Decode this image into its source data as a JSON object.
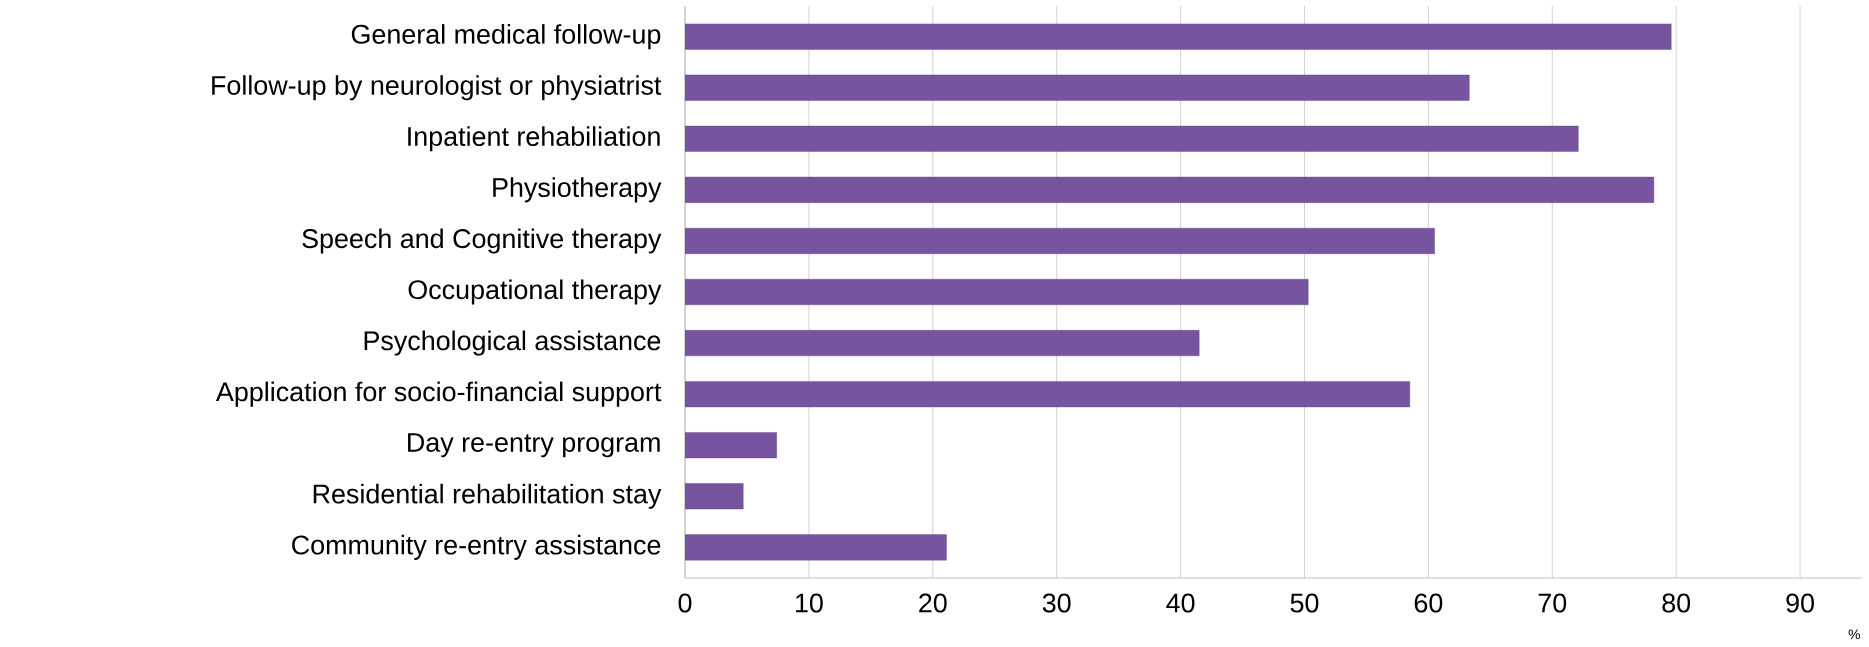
{
  "chart_data": {
    "type": "bar",
    "orientation": "horizontal",
    "xlabel": "%",
    "categories": [
      "General medical follow-up",
      "Follow-up by neurologist or physiatrist",
      "Inpatient rehabiliation",
      "Physiotherapy",
      "Speech and Cognitive therapy",
      "Occupational therapy",
      "Psychological assistance",
      "Application for socio-financial support",
      "Day re-entry program",
      "Residential rehabilitation stay",
      "Community re-entry assistance"
    ],
    "values": [
      79.6,
      63.3,
      72.1,
      78.2,
      60.5,
      50.3,
      41.5,
      58.5,
      7.4,
      4.7,
      21.1
    ],
    "color": "#7654a0",
    "xlim": [
      0,
      95
    ],
    "xticks": [
      0,
      10,
      20,
      30,
      40,
      50,
      60,
      70,
      80,
      90
    ],
    "grid": "x"
  }
}
